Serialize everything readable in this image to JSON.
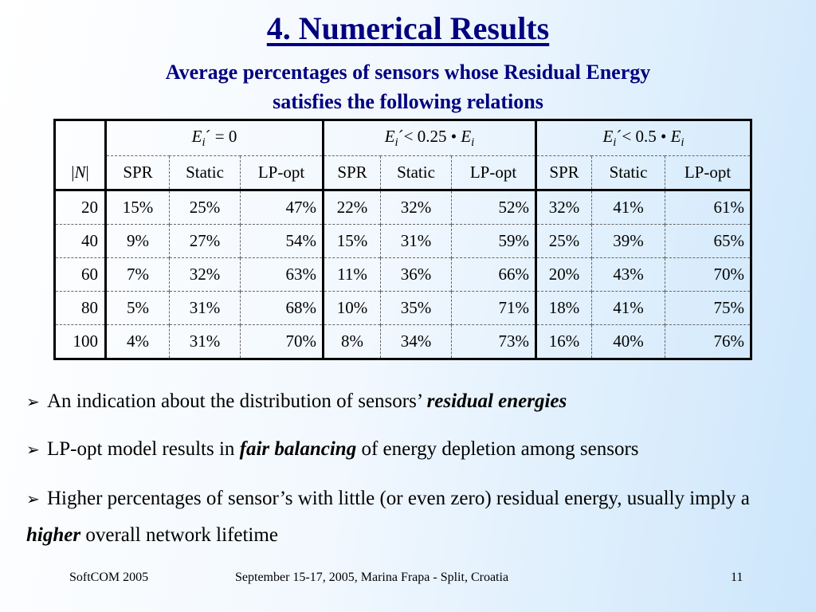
{
  "title": "4. Numerical Results",
  "subtitle": {
    "line1": "Average percentages of sensors whose Residual Energy",
    "line2": "satisfies the following relations"
  },
  "table": {
    "groups": [
      {
        "lhs": "E",
        "sub": "i",
        "rel": "´ = 0",
        "rhs": "",
        "rhs_sub": ""
      },
      {
        "lhs": "E",
        "sub": "i",
        "rel": "´< 0.25 • ",
        "rhs": "E",
        "rhs_sub": "i"
      },
      {
        "lhs": "E",
        "sub": "i",
        "rel": "´< 0.5 • ",
        "rhs": "E",
        "rhs_sub": "i"
      }
    ],
    "n_label_bar_left": "|",
    "n_label_var": "N",
    "n_label_bar_right": "|",
    "columns": [
      "SPR",
      "Static",
      "LP-opt",
      "SPR",
      "Static",
      "LP-opt",
      "SPR",
      "Static",
      "LP-opt"
    ],
    "rows": [
      {
        "n": "100",
        "cells": [
          "4%",
          "31%",
          "70%",
          "8%",
          "34%",
          "73%",
          "16%",
          "40%",
          "76%"
        ]
      }
    ]
  },
  "rows_full": [
    {
      "n": "20",
      "cells": [
        "15%",
        "25%",
        "47%",
        "22%",
        "32%",
        "52%",
        "32%",
        "41%",
        "61%"
      ]
    },
    {
      "n": "40",
      "cells": [
        "9%",
        "27%",
        "54%",
        "15%",
        "31%",
        "59%",
        "25%",
        "39%",
        "65%"
      ]
    },
    {
      "n": "60",
      "cells": [
        "7%",
        "32%",
        "63%",
        "11%",
        "36%",
        "66%",
        "20%",
        "43%",
        "70%"
      ]
    },
    {
      "n": "80",
      "cells": [
        "5%",
        "31%",
        "68%",
        "10%",
        "35%",
        "71%",
        "18%",
        "41%",
        "75%"
      ]
    },
    {
      "n": "100",
      "cells": [
        "4%",
        "31%",
        "70%",
        "8%",
        "34%",
        "73%",
        "16%",
        "40%",
        "76%"
      ]
    }
  ],
  "bullets": [
    {
      "pre": "An indication about the distribution of sensors’ ",
      "em": "residual energies",
      "post": ""
    },
    {
      "pre": "LP-opt model results in ",
      "em": "fair balancing",
      "post": " of energy depletion among sensors"
    },
    {
      "pre": "Higher percentages of sensor’s with little (or even zero) residual energy, usually imply a ",
      "em": "higher",
      "post": " overall network lifetime"
    }
  ],
  "bullet_glyph": "➢",
  "footer": {
    "left": "SoftCOM 2005",
    "center": "September 15-17, 2005, Marina Frapa - Split, Croatia",
    "right": "11"
  }
}
